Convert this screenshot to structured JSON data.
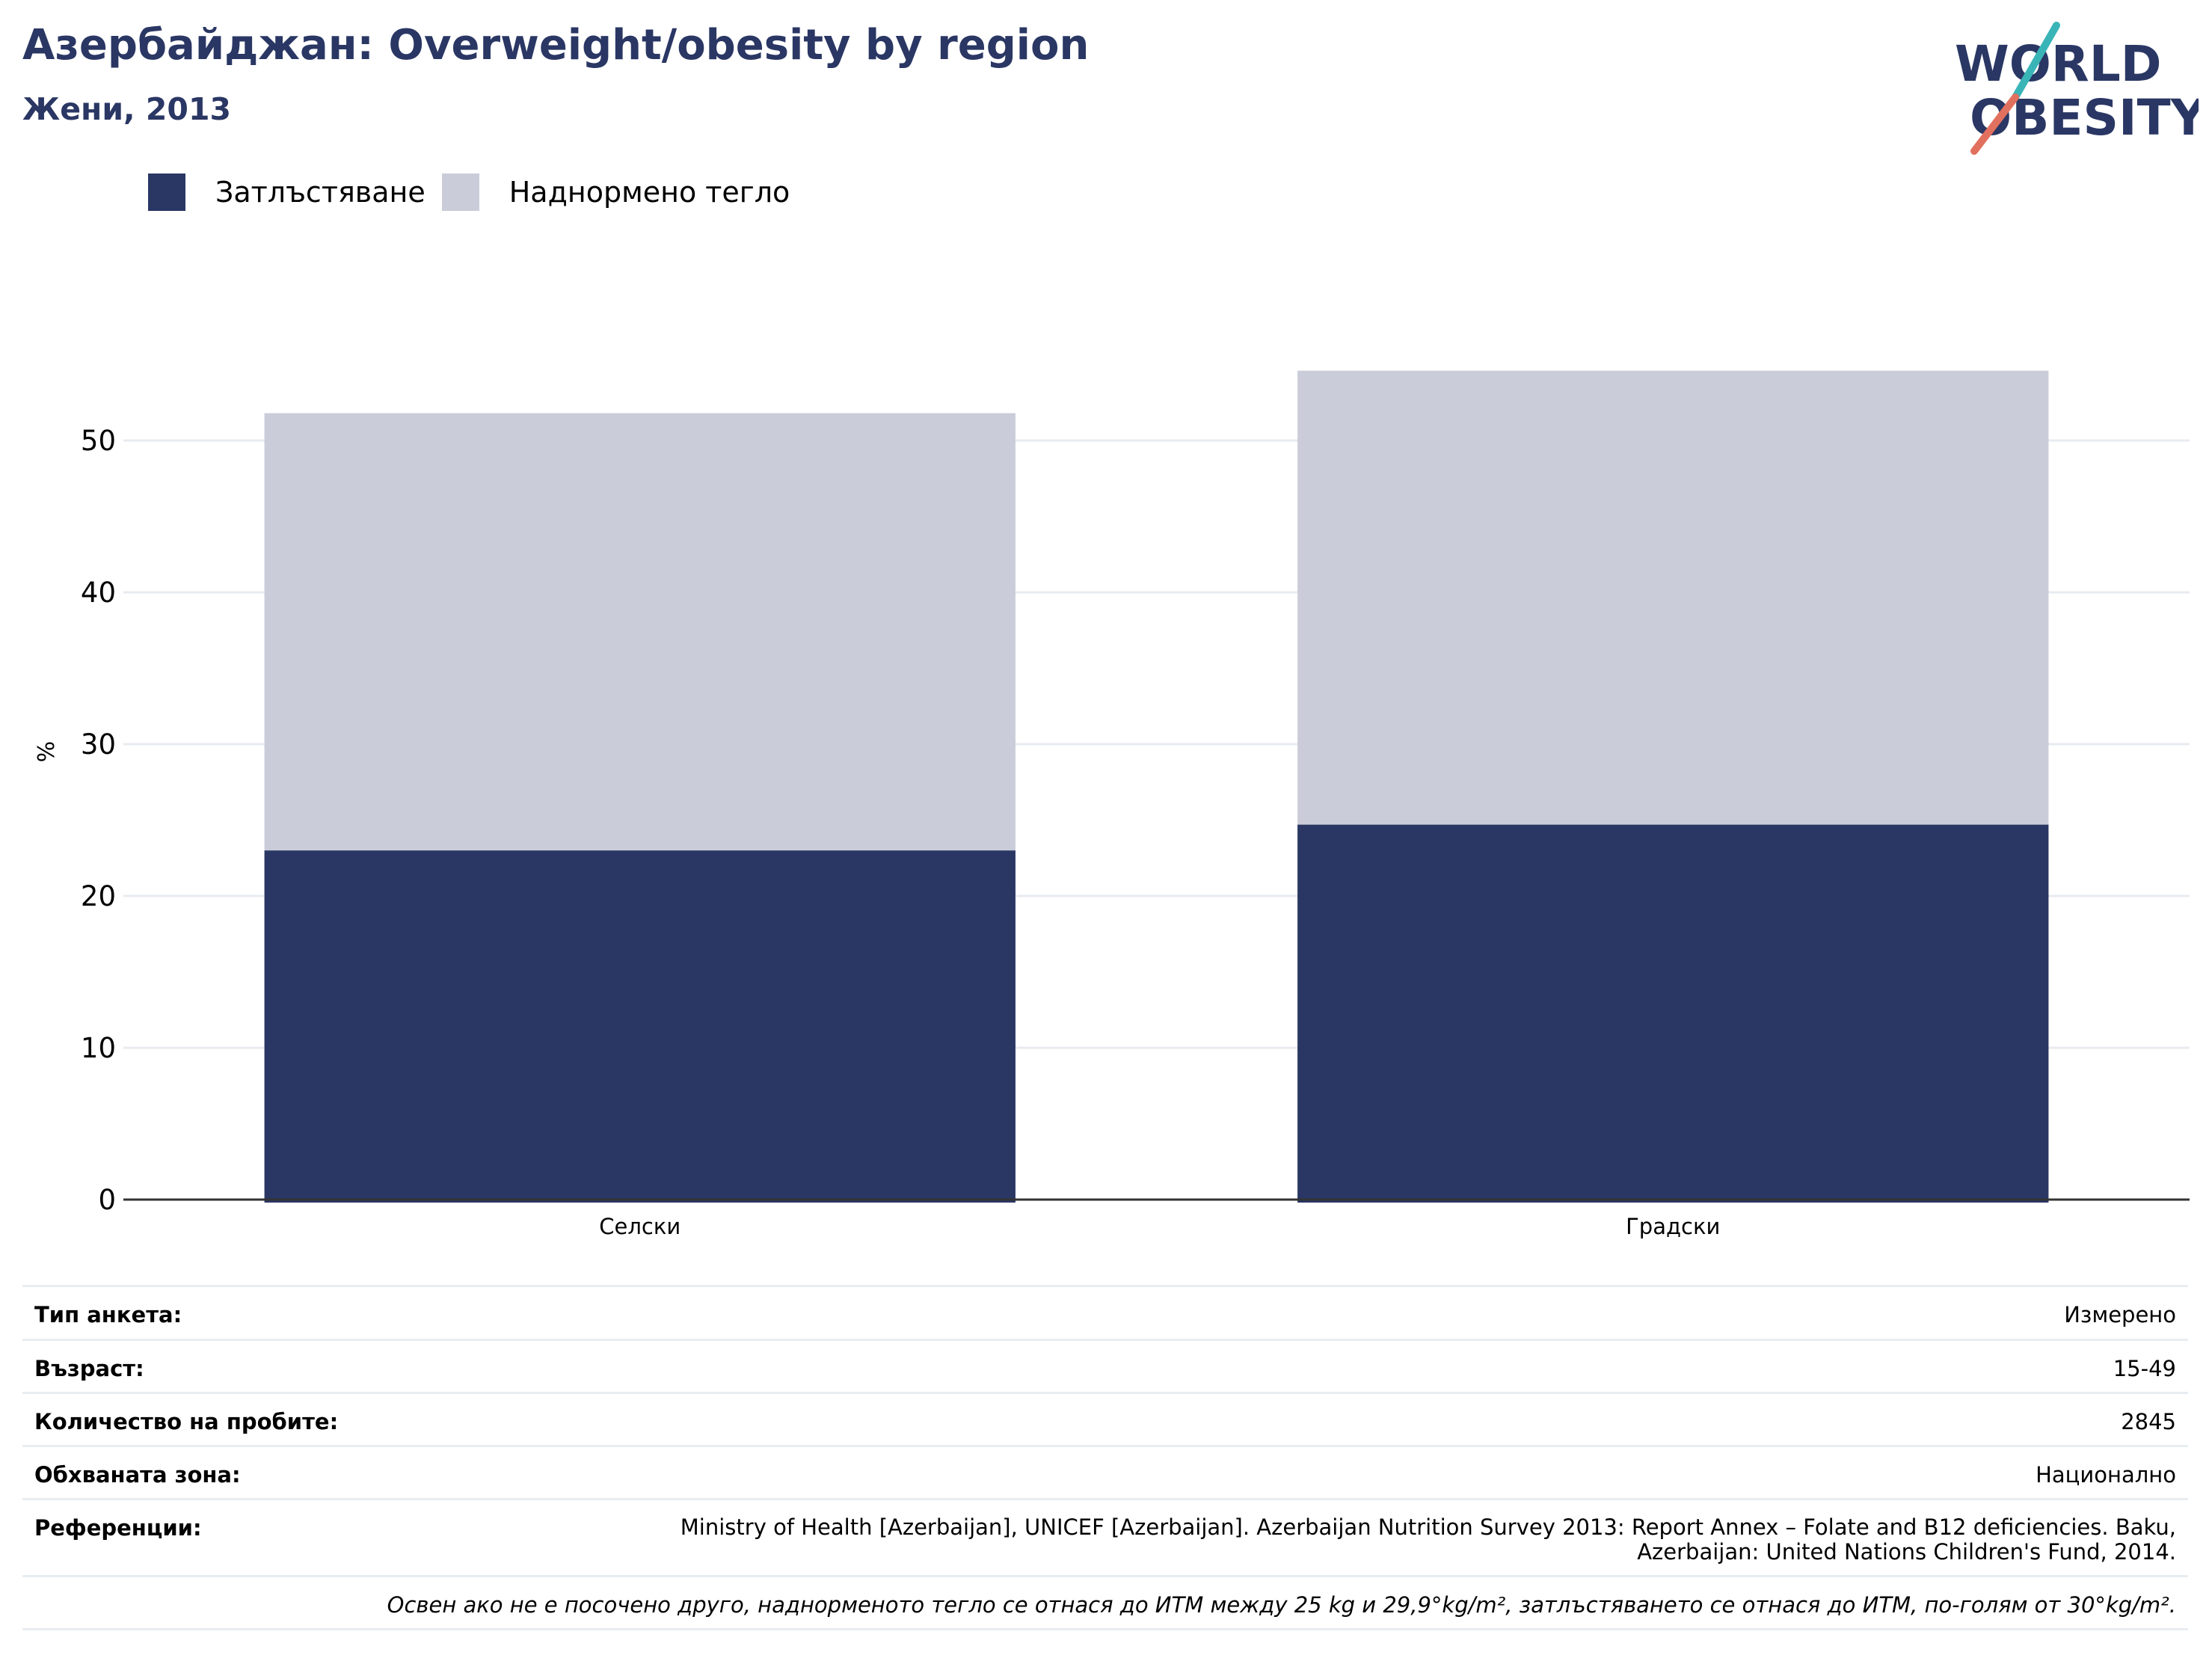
{
  "header": {
    "title": "Азербайджан: Overweight/obesity by region",
    "subtitle": "Жени, 2013"
  },
  "logo": {
    "line1": "WORLD",
    "line2": "OBESITY"
  },
  "legend": [
    {
      "label": "Затлъстяване",
      "color": "#2a3764"
    },
    {
      "label": "Наднормено тегло",
      "color": "#cacdd9"
    }
  ],
  "chart_data": {
    "type": "bar",
    "stacked": true,
    "categories": [
      "Селски",
      "Градски"
    ],
    "series": [
      {
        "name": "Затлъстяване",
        "values": [
          23.0,
          24.7
        ],
        "color": "#2a3764"
      },
      {
        "name": "Наднормено тегло",
        "values": [
          28.8,
          29.9
        ],
        "color": "#cacdd9"
      }
    ],
    "ylabel": "%",
    "ylim": [
      0,
      60
    ],
    "yticks": [
      0,
      10,
      20,
      30,
      40,
      50
    ],
    "grid": true,
    "legend_position": "top-left"
  },
  "info": [
    {
      "key": "Тип анкета:",
      "value": "Измерено"
    },
    {
      "key": "Възраст:",
      "value": "15-49"
    },
    {
      "key": "Количество на пробите:",
      "value": "2845"
    },
    {
      "key": "Обхваната зона:",
      "value": "Национално"
    },
    {
      "key": "Референции:",
      "value": "Ministry of Health [Azerbaijan], UNICEF [Azerbaijan]. Azerbaijan Nutrition Survey 2013: Report Annex – Folate and B12 deficiencies. Baku, Azerbaijan: United Nations Children's Fund, 2014."
    }
  ],
  "footnote": "Освен ако не е посочено друго, наднорменото тегло се отнася до ИТМ между 25 kg и 29,9°kg/m², затлъстяването се отнася до ИТМ, по-голям от 30°kg/m²."
}
